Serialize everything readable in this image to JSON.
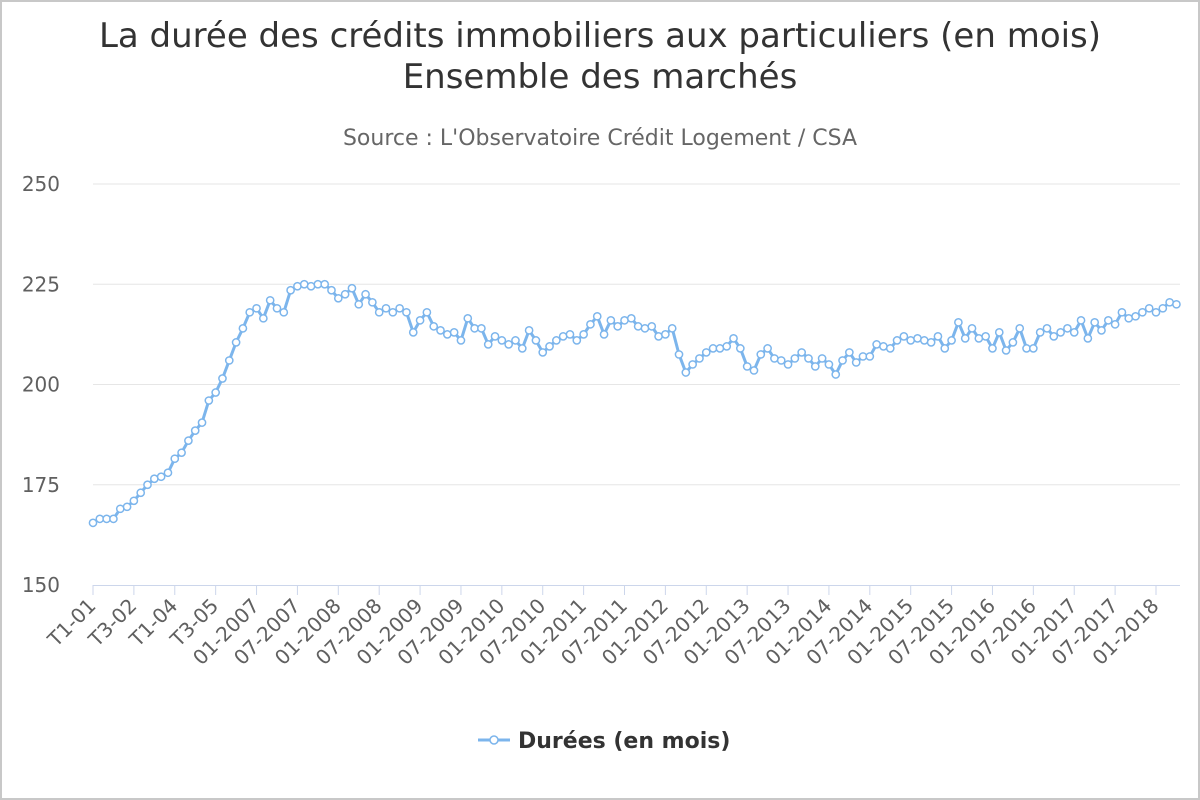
{
  "chart_data": {
    "type": "line",
    "title_line1": "La durée des crédits immobiliers aux particuliers (en mois)",
    "title_line2": "Ensemble des marchés",
    "subtitle": "Source : L'Observatoire Crédit Logement / CSA",
    "xlabel": "",
    "ylabel": "",
    "ylim": [
      150,
      250
    ],
    "yticks": [
      150,
      175,
      200,
      225,
      250
    ],
    "grid": true,
    "legend_position": "bottom-center",
    "x_tick_labels": [
      {
        "label": "T1-01",
        "index": 0
      },
      {
        "label": "T3-02",
        "index": 6
      },
      {
        "label": "T1-04",
        "index": 12
      },
      {
        "label": "T3-05",
        "index": 18
      },
      {
        "label": "01-2007",
        "index": 24
      },
      {
        "label": "07-2007",
        "index": 30
      },
      {
        "label": "01-2008",
        "index": 36
      },
      {
        "label": "07-2008",
        "index": 42
      },
      {
        "label": "01-2009",
        "index": 48
      },
      {
        "label": "07-2009",
        "index": 54
      },
      {
        "label": "01-2010",
        "index": 60
      },
      {
        "label": "07-2010",
        "index": 66
      },
      {
        "label": "01-2011",
        "index": 72
      },
      {
        "label": "07-2011",
        "index": 78
      },
      {
        "label": "01-2012",
        "index": 84
      },
      {
        "label": "07-2012",
        "index": 90
      },
      {
        "label": "01-2013",
        "index": 96
      },
      {
        "label": "07-2013",
        "index": 102
      },
      {
        "label": "01-2014",
        "index": 108
      },
      {
        "label": "07-2014",
        "index": 114
      },
      {
        "label": "01-2015",
        "index": 120
      },
      {
        "label": "07-2015",
        "index": 126
      },
      {
        "label": "01-2016",
        "index": 132
      },
      {
        "label": "07-2016",
        "index": 138
      },
      {
        "label": "01-2017",
        "index": 144
      },
      {
        "label": "07-2017",
        "index": 150
      },
      {
        "label": "01-2018",
        "index": 156
      }
    ],
    "series": [
      {
        "name": "Durées (en mois)",
        "color": "#7cb5ec",
        "values": [
          165.5,
          166.5,
          166.5,
          166.5,
          169,
          169.5,
          171,
          173,
          175,
          176.5,
          177,
          178,
          181.5,
          183,
          186,
          188.5,
          190.5,
          196,
          198,
          201.5,
          206,
          210.5,
          214,
          218,
          219,
          216.5,
          221,
          219,
          218,
          223.5,
          224.5,
          225,
          224.5,
          225,
          225,
          223.5,
          221.5,
          222.5,
          224,
          220,
          222.5,
          220.5,
          218,
          219,
          218,
          219,
          218,
          213,
          216,
          218,
          214.5,
          213.5,
          212.5,
          213,
          211,
          216.5,
          214,
          214,
          210,
          212,
          211,
          210,
          211,
          209,
          213.5,
          211,
          208,
          209.5,
          211,
          212,
          212.5,
          211,
          212.5,
          215,
          217,
          212.5,
          216,
          214.5,
          216,
          216.5,
          214.5,
          214,
          214.5,
          212,
          212.5,
          214,
          207.5,
          203,
          205,
          206.5,
          208,
          209,
          209,
          209.5,
          211.5,
          209,
          204.5,
          203.5,
          207.5,
          209,
          206.5,
          206,
          205,
          206.5,
          208,
          206.5,
          204.5,
          206.5,
          205,
          202.5,
          206,
          208,
          205.5,
          207,
          207,
          210,
          209.5,
          209,
          211,
          212,
          211,
          211.5,
          211,
          210.5,
          212,
          209,
          211,
          215.5,
          211.5,
          214,
          211.5,
          212,
          209,
          213,
          208.5,
          210.5,
          214,
          209,
          209,
          213,
          214,
          212,
          213,
          214,
          213,
          216,
          211.5,
          215.5,
          213.5,
          216,
          215,
          218,
          216.5,
          217,
          218,
          219,
          218,
          219,
          220.5,
          220
        ]
      }
    ]
  }
}
